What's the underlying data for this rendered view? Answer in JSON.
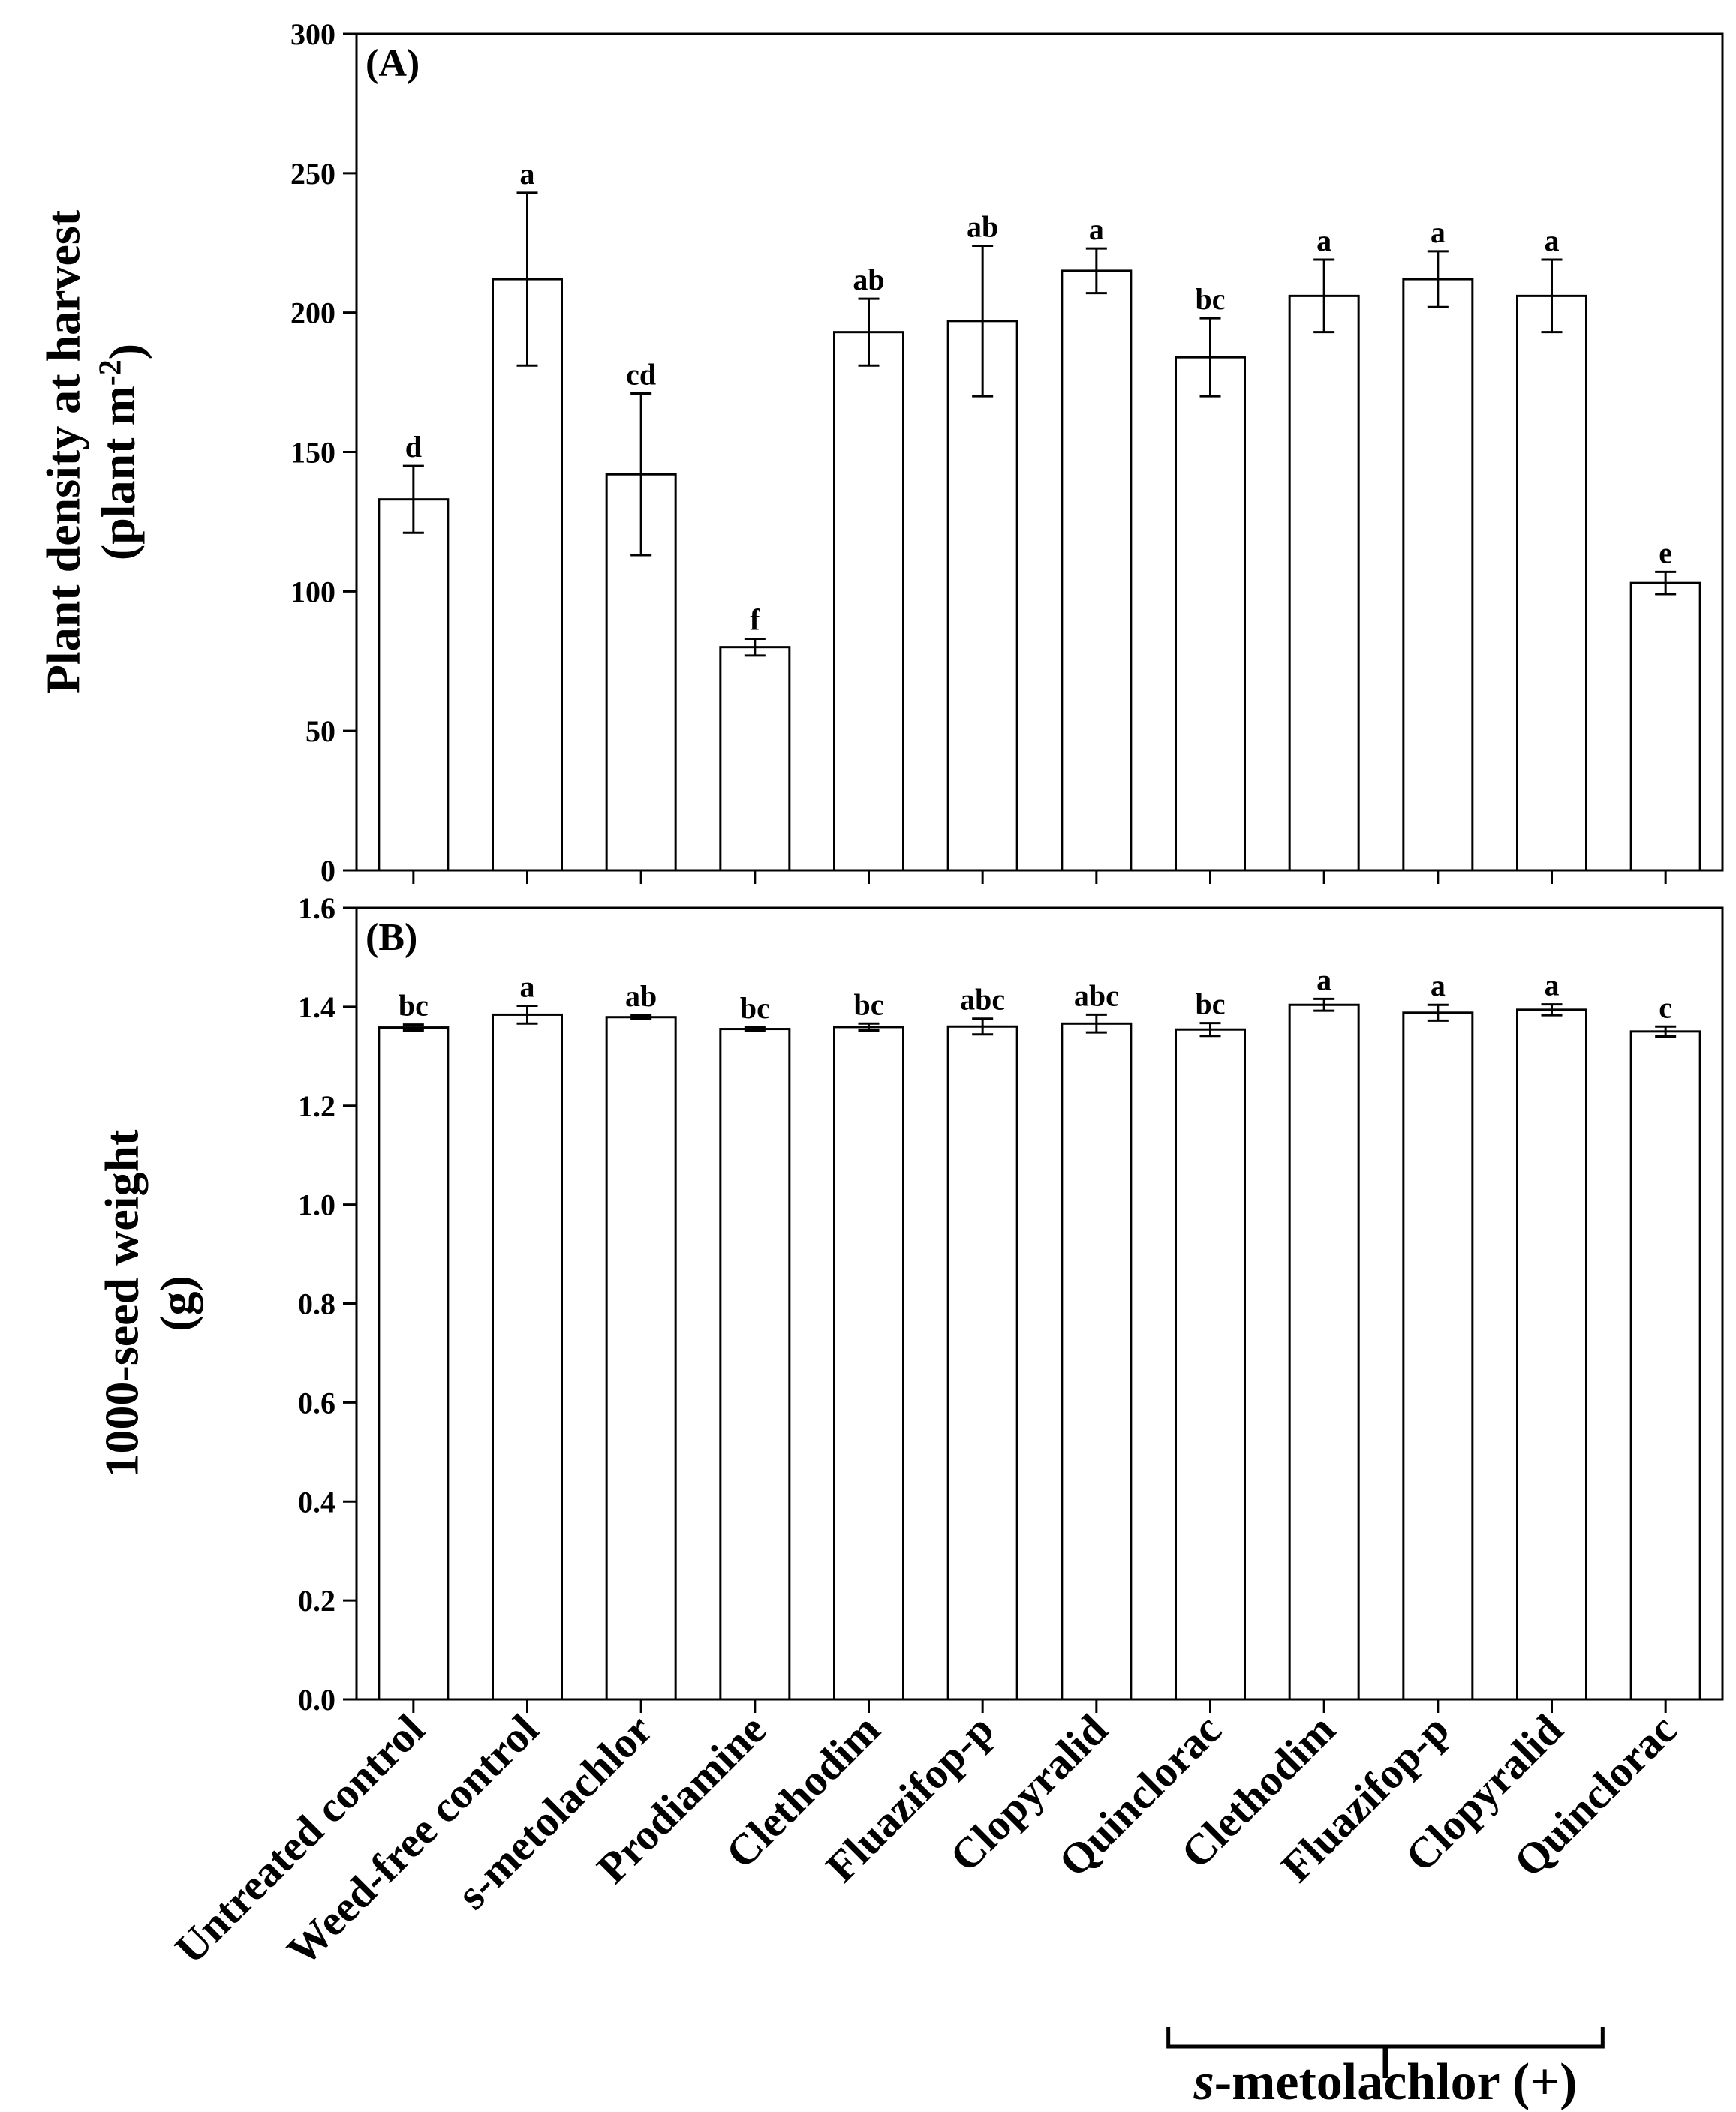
{
  "chart_data": {
    "type": "bar",
    "categories": [
      "Untreated control",
      "Weed-free control",
      "s-metolachlor",
      "Prodiamine",
      "Clethodim",
      "Fluazifop-p",
      "Clopyralid",
      "Quinclorac",
      "Clethodim",
      "Fluazifop-p",
      "Clopyralid",
      "Quinclorac"
    ],
    "group_label": {
      "italic": "s",
      "rest": "-metolachlor (+)"
    },
    "group_range": [
      8,
      11
    ],
    "panels": [
      {
        "id": "A",
        "label": "(A)",
        "ylabel_lines": [
          "Plant density at harvest",
          "(plant m",
          "-2",
          ")"
        ],
        "ylim": [
          0,
          300
        ],
        "yticks": [
          "0",
          "50",
          "100",
          "150",
          "200",
          "250",
          "300"
        ],
        "ytick_values": [
          0,
          50,
          100,
          150,
          200,
          250,
          300
        ],
        "values": [
          133,
          212,
          142,
          80,
          193,
          197,
          215,
          184,
          206,
          212,
          206,
          103
        ],
        "errors": [
          12,
          31,
          29,
          3,
          12,
          27,
          8,
          14,
          13,
          10,
          13,
          4
        ],
        "letters": [
          "d",
          "a",
          "cd",
          "f",
          "ab",
          "ab",
          "a",
          "bc",
          "a",
          "a",
          "a",
          "e"
        ]
      },
      {
        "id": "B",
        "label": "(B)",
        "ylabel_lines": [
          "1000-seed weight",
          "(g)"
        ],
        "ylim": [
          0,
          1.6
        ],
        "yticks": [
          "0.0",
          "0.2",
          "0.4",
          "0.6",
          "0.8",
          "1.0",
          "1.2",
          "1.4",
          "1.6"
        ],
        "ytick_values": [
          0,
          0.2,
          0.4,
          0.6,
          0.8,
          1.0,
          1.2,
          1.4,
          1.6
        ],
        "values": [
          1.358,
          1.384,
          1.379,
          1.355,
          1.359,
          1.36,
          1.366,
          1.354,
          1.404,
          1.388,
          1.394,
          1.35
        ],
        "errors": [
          0.006,
          0.018,
          0.004,
          0.004,
          0.007,
          0.016,
          0.018,
          0.013,
          0.012,
          0.016,
          0.011,
          0.01
        ],
        "letters": [
          "bc",
          "a",
          "ab",
          "bc",
          "bc",
          "abc",
          "abc",
          "bc",
          "a",
          "a",
          "a",
          "c"
        ]
      }
    ]
  }
}
